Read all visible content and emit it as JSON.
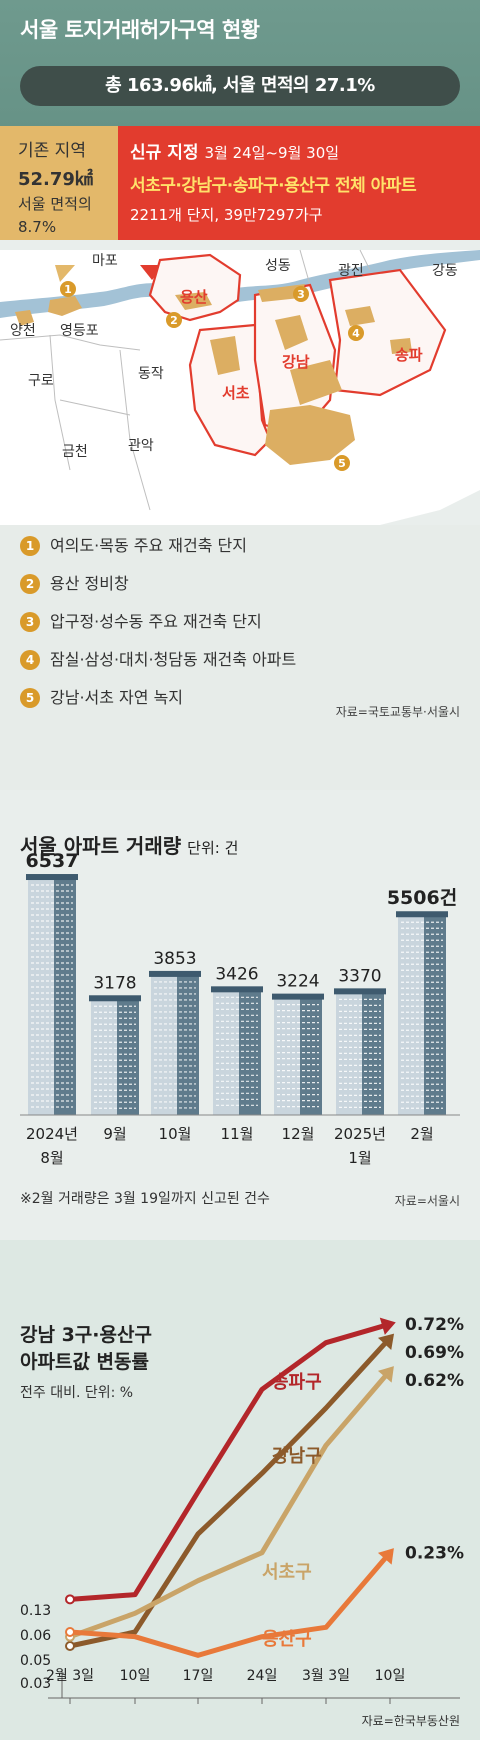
{
  "header": {
    "title": "서울 토지거래허가구역 현황",
    "total": "총 163.96㎢, 서울 면적의 27.1%"
  },
  "existing": {
    "label": "기존 지역",
    "area": "52.79㎢",
    "ratio_label": "서울 면적의",
    "ratio": "8.7%"
  },
  "new_zone": {
    "label": "신규 지정",
    "period": "3월 24일~9월 30일",
    "districts": "서초구·강남구·송파구·용산구 전체 아파트",
    "count": "2211개 단지, 39만7297가구"
  },
  "map": {
    "district_labels": [
      "마포",
      "성동",
      "광진",
      "강동",
      "양천",
      "영등포",
      "구로",
      "동작",
      "금천",
      "관악"
    ],
    "highlight_labels": [
      "용산",
      "강남",
      "서초",
      "송파"
    ],
    "colors": {
      "red": "#e23c2e",
      "sand": "#dcae62",
      "land": "#ffffff",
      "river": "#a3c2d6",
      "marker": "#d99a2a"
    }
  },
  "legend": [
    {
      "num": "1",
      "label": "여의도·목동 주요 재건축 단지"
    },
    {
      "num": "2",
      "label": "용산 정비창"
    },
    {
      "num": "3",
      "label": "압구정·성수동 주요 재건축 단지"
    },
    {
      "num": "4",
      "label": "잠실·삼성·대치·청담동 재건축 아파트"
    },
    {
      "num": "5",
      "label": "강남·서초 자연 녹지"
    }
  ],
  "map_source": "자료=국토교통부·서울시",
  "volume": {
    "title": "서울 아파트 거래량",
    "unit": "단위: 건",
    "note": "※2월 거래량은 3월 19일까지 신고된 건수",
    "source": "자료=서울시"
  },
  "price": {
    "title_line1": "강남 3구·용산구",
    "title_line2": "아파트값 변동률",
    "subtitle": "전주 대비. 단위: %",
    "source": "자료=한국부동산원"
  },
  "chart_data": [
    {
      "type": "bar",
      "title": "서울 아파트 거래량",
      "unit": "단위: 건",
      "categories": [
        "2024년 8월",
        "9월",
        "10월",
        "11월",
        "12월",
        "2025년 1월",
        "2월"
      ],
      "values": [
        6537,
        3178,
        3853,
        3426,
        3224,
        3370,
        5506
      ],
      "value_labels": [
        "6537",
        "3178",
        "3853",
        "3426",
        "3224",
        "3370",
        "5506건"
      ],
      "ylim": [
        0,
        7000
      ]
    },
    {
      "type": "line",
      "title": "강남 3구·용산구 아파트값 변동률",
      "unit": "전주 대비. 단위: %",
      "x": [
        "2월 3일",
        "10일",
        "17일",
        "24일",
        "3월 3일",
        "10일"
      ],
      "y_tick_labels": [
        "0.13",
        "0.06",
        "0.05",
        "0.03"
      ],
      "series": [
        {
          "name": "송파구",
          "color": "#b3262a",
          "values": [
            0.13,
            0.14,
            0.36,
            0.58,
            0.68,
            0.72
          ],
          "end_label": "0.72%"
        },
        {
          "name": "강남구",
          "color": "#8c5a2b",
          "values": [
            0.03,
            0.06,
            0.27,
            0.4,
            0.54,
            0.69
          ],
          "end_label": "0.69%"
        },
        {
          "name": "서초구",
          "color": "#c9a468",
          "values": [
            0.05,
            0.1,
            0.17,
            0.23,
            0.46,
            0.62
          ],
          "end_label": "0.62%"
        },
        {
          "name": "용산구",
          "color": "#e8793a",
          "values": [
            0.06,
            0.05,
            0.01,
            0.05,
            0.07,
            0.23
          ],
          "end_label": "0.23%"
        }
      ],
      "ylim": [
        0,
        0.75
      ]
    }
  ]
}
